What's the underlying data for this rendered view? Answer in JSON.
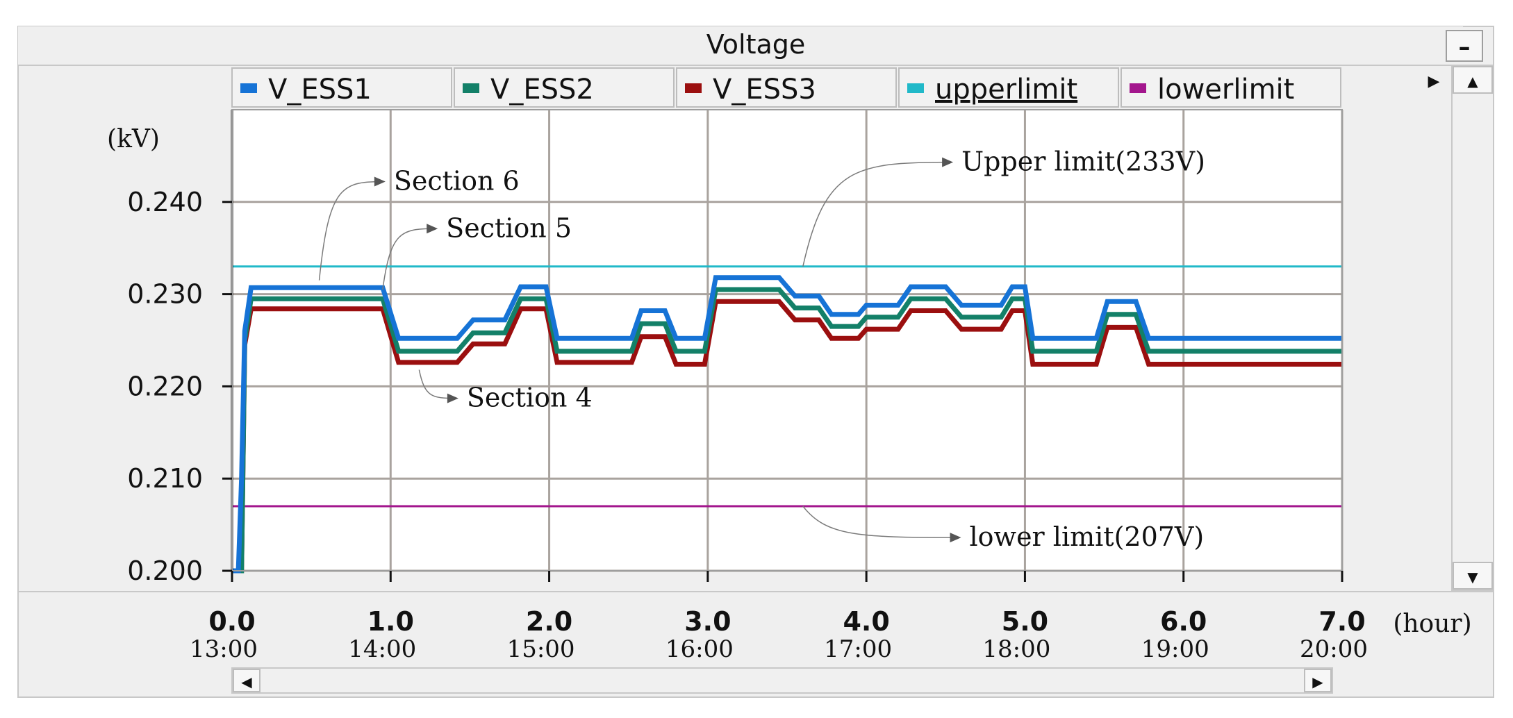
{
  "window": {
    "title": "Voltage",
    "minimize_label": "–",
    "scroll_up": "▲",
    "scroll_down": "▼",
    "scroll_left": "◀",
    "scroll_right": "▶",
    "legend_more": "▶"
  },
  "colors": {
    "V_ESS1": "#1673d6",
    "V_ESS2": "#138068",
    "V_ESS3": "#9b0f0f",
    "upperlimit": "#21b9c9",
    "lowerlimit": "#a3168d",
    "grid": "#a9a39e",
    "panel": "#efefef"
  },
  "chart_data": {
    "type": "line",
    "y_unit_label": "(kV)",
    "x_unit_label": "(hour)",
    "xlim": [
      0,
      7
    ],
    "ylim": [
      0.2,
      0.25
    ],
    "x_ticks": [
      "0.0",
      "1.0",
      "2.0",
      "3.0",
      "4.0",
      "5.0",
      "6.0",
      "7.0"
    ],
    "x_tick_times": [
      "13:00",
      "14:00",
      "15:00",
      "16:00",
      "17:00",
      "18:00",
      "19:00",
      "20:00"
    ],
    "y_ticks": [
      "0.200",
      "0.210",
      "0.220",
      "0.230",
      "0.240"
    ],
    "grid": true,
    "legend": [
      "V_ESS1",
      "V_ESS2",
      "V_ESS3",
      "upperlimit",
      "lowerlimit"
    ],
    "legend_position": "top",
    "series": [
      {
        "name": "V_ESS1",
        "x": [
          0,
          0.04,
          0.06,
          0.08,
          0.12,
          0.95,
          1.05,
          1.42,
          1.52,
          1.72,
          1.82,
          1.98,
          2.05,
          2.52,
          2.58,
          2.73,
          2.8,
          2.98,
          3.05,
          3.45,
          3.55,
          3.7,
          3.78,
          3.95,
          4.0,
          4.2,
          4.28,
          4.5,
          4.6,
          4.85,
          4.92,
          5.0,
          5.05,
          5.45,
          5.52,
          5.7,
          5.78,
          7.0
        ],
        "y": [
          0.2,
          0.2,
          0.21,
          0.226,
          0.2307,
          0.2307,
          0.2252,
          0.2252,
          0.2272,
          0.2272,
          0.2308,
          0.2308,
          0.2252,
          0.2252,
          0.2282,
          0.2282,
          0.2252,
          0.2252,
          0.2318,
          0.2318,
          0.2298,
          0.2298,
          0.2278,
          0.2278,
          0.2288,
          0.2288,
          0.2308,
          0.2308,
          0.2288,
          0.2288,
          0.2308,
          0.2308,
          0.2252,
          0.2252,
          0.2292,
          0.2292,
          0.2252,
          0.2252
        ]
      },
      {
        "name": "V_ESS2",
        "x": [
          0,
          0.06,
          0.08,
          0.12,
          0.95,
          1.05,
          1.42,
          1.52,
          1.72,
          1.82,
          1.98,
          2.05,
          2.52,
          2.58,
          2.73,
          2.8,
          2.98,
          3.05,
          3.45,
          3.55,
          3.7,
          3.78,
          3.95,
          4.0,
          4.2,
          4.28,
          4.5,
          4.6,
          4.85,
          4.92,
          5.0,
          5.05,
          5.45,
          5.52,
          5.7,
          5.78,
          7.0
        ],
        "y": [
          0.2,
          0.2,
          0.225,
          0.2295,
          0.2295,
          0.2238,
          0.2238,
          0.2258,
          0.2258,
          0.2295,
          0.2295,
          0.2238,
          0.2238,
          0.2268,
          0.2268,
          0.2238,
          0.2238,
          0.2305,
          0.2305,
          0.2285,
          0.2285,
          0.2265,
          0.2265,
          0.2275,
          0.2275,
          0.2295,
          0.2295,
          0.2275,
          0.2275,
          0.2295,
          0.2295,
          0.2238,
          0.2238,
          0.2278,
          0.2278,
          0.2238,
          0.2238
        ]
      },
      {
        "name": "V_ESS3",
        "x": [
          0,
          0.05,
          0.06,
          0.08,
          0.12,
          0.95,
          1.05,
          1.42,
          1.52,
          1.72,
          1.82,
          1.98,
          2.05,
          2.52,
          2.58,
          2.73,
          2.8,
          2.98,
          3.05,
          3.45,
          3.55,
          3.7,
          3.78,
          3.95,
          4.0,
          4.2,
          4.28,
          4.5,
          4.6,
          4.85,
          4.92,
          5.0,
          5.05,
          5.45,
          5.52,
          5.7,
          5.78,
          7.0
        ],
        "y": [
          0.2,
          0.2,
          0.2,
          0.2245,
          0.2284,
          0.2284,
          0.2226,
          0.2226,
          0.2246,
          0.2246,
          0.2284,
          0.2284,
          0.2226,
          0.2226,
          0.2254,
          0.2254,
          0.2224,
          0.2224,
          0.2292,
          0.2292,
          0.2272,
          0.2272,
          0.2252,
          0.2252,
          0.2262,
          0.2262,
          0.2282,
          0.2282,
          0.2262,
          0.2262,
          0.2282,
          0.2282,
          0.2224,
          0.2224,
          0.2264,
          0.2264,
          0.2224,
          0.2224
        ]
      },
      {
        "name": "upperlimit",
        "x": [
          0,
          7.0
        ],
        "y": [
          0.233,
          0.233
        ]
      },
      {
        "name": "lowerlimit",
        "x": [
          0,
          7.0
        ],
        "y": [
          0.207,
          0.207
        ]
      }
    ],
    "annotations": [
      {
        "text": "Section 6",
        "target_x": 0.55,
        "target_y": 0.2315,
        "label_x": 1.02,
        "label_y": 0.2413
      },
      {
        "text": "Section 5",
        "target_x": 0.95,
        "target_y": 0.2305,
        "label_x": 1.35,
        "label_y": 0.2362
      },
      {
        "text": "Section 4",
        "target_x": 1.18,
        "target_y": 0.2218,
        "label_x": 1.48,
        "label_y": 0.2178
      },
      {
        "text": "Upper limit(233V)",
        "target_x": 3.6,
        "target_y": 0.233,
        "label_x": 4.6,
        "label_y": 0.2434
      },
      {
        "text": "lower limit(207V)",
        "target_x": 3.6,
        "target_y": 0.207,
        "label_x": 4.65,
        "label_y": 0.2027
      }
    ]
  }
}
